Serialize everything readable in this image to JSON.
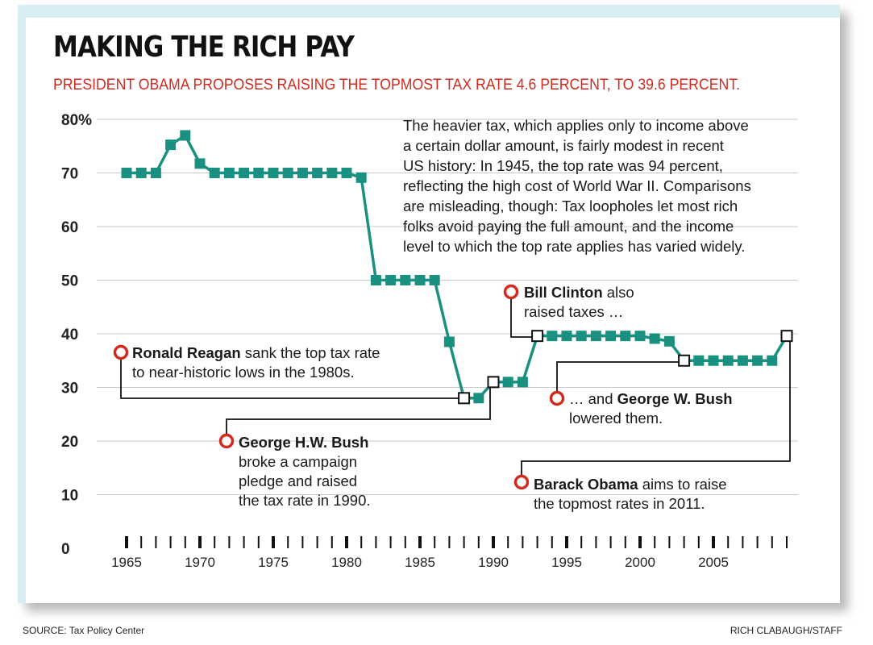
{
  "title": "MAKING THE RICH PAY",
  "subtitle": "PRESIDENT OBAMA PROPOSES RAISING THE TOPMOST TAX RATE 4.6 PERCENT, TO 39.6 PERCENT.",
  "blurb": {
    "lines": [
      "The heavier tax, which applies only to income above",
      "a certain dollar amount, is fairly modest in recent",
      "US history: In 1945, the top rate was 94 percent,",
      "reflecting the high cost of World War II. Comparisons",
      "are misleading, though: Tax loopholes let most rich",
      "folks avoid paying the full amount, and the income",
      "level to which the top rate applies has varied widely."
    ]
  },
  "annotations": {
    "reagan": {
      "name": "Ronald Reagan",
      "line1": " sank the top tax rate",
      "line2": "to near-historic lows in the 1980s."
    },
    "bush_hw": {
      "name": "George H.W. Bush",
      "line2": "broke a campaign",
      "line3": "pledge and raised",
      "line4": "the tax rate in 1990."
    },
    "clinton": {
      "name": "Bill Clinton",
      "line1": " also",
      "line2": "raised taxes …"
    },
    "bush_w": {
      "prefix": "… and ",
      "name": "George W. Bush",
      "line2": "lowered them."
    },
    "obama": {
      "name": "Barack Obama",
      "line1": " aims to raise",
      "line2": "the topmost rates in 2011."
    }
  },
  "footer": {
    "source": "SOURCE: Tax Policy Center",
    "credit": "RICH CLABAUGH/STAFF"
  },
  "colors": {
    "line": "#1a9080",
    "marker": "#1a9080",
    "highlight_marker_fill": "#ffffff",
    "annotation_dot": "#d42a1e",
    "subtitle": "#d42a1e",
    "background_accent": "#d9eef3"
  },
  "chart_data": {
    "type": "line",
    "title": "MAKING THE RICH PAY",
    "subtitle": "PRESIDENT OBAMA PROPOSES RAISING THE TOPMOST TAX RATE 4.6 PERCENT, TO 39.6 PERCENT.",
    "xlabel": "",
    "ylabel": "",
    "xlim": [
      1964.5,
      2010.5
    ],
    "ylim": [
      0,
      80
    ],
    "x_ticks": [
      1965,
      1970,
      1975,
      1980,
      1985,
      1990,
      1995,
      2000,
      2005
    ],
    "y_ticks": [
      0,
      10,
      20,
      30,
      40,
      50,
      60,
      70,
      80
    ],
    "y_tick_labels": [
      "0",
      "10",
      "20",
      "30",
      "40",
      "50",
      "60",
      "70",
      "80%"
    ],
    "grid": true,
    "series": [
      {
        "x": [
          1965,
          1966,
          1967,
          1968,
          1969,
          1970,
          1971,
          1972,
          1973,
          1974,
          1975,
          1976,
          1977,
          1978,
          1979,
          1980,
          1981,
          1982,
          1983,
          1984,
          1985,
          1986,
          1987,
          1988,
          1989,
          1990,
          1991,
          1992,
          1993,
          1994,
          1995,
          1996,
          1997,
          1998,
          1999,
          2000,
          2001,
          2002,
          2003,
          2004,
          2005,
          2006,
          2007,
          2008,
          2009,
          2010
        ],
        "values": [
          70,
          70,
          70,
          75.25,
          77,
          71.75,
          70,
          70,
          70,
          70,
          70,
          70,
          70,
          70,
          70,
          70,
          69.13,
          50,
          50,
          50,
          50,
          50,
          38.5,
          28,
          28,
          31,
          31,
          31,
          39.6,
          39.6,
          39.6,
          39.6,
          39.6,
          39.6,
          39.6,
          39.6,
          39.1,
          38.6,
          35,
          35,
          35,
          35,
          35,
          35,
          35,
          39.6
        ],
        "highlighted_years": [
          1988,
          1990,
          1993,
          2003,
          2010
        ]
      }
    ]
  }
}
